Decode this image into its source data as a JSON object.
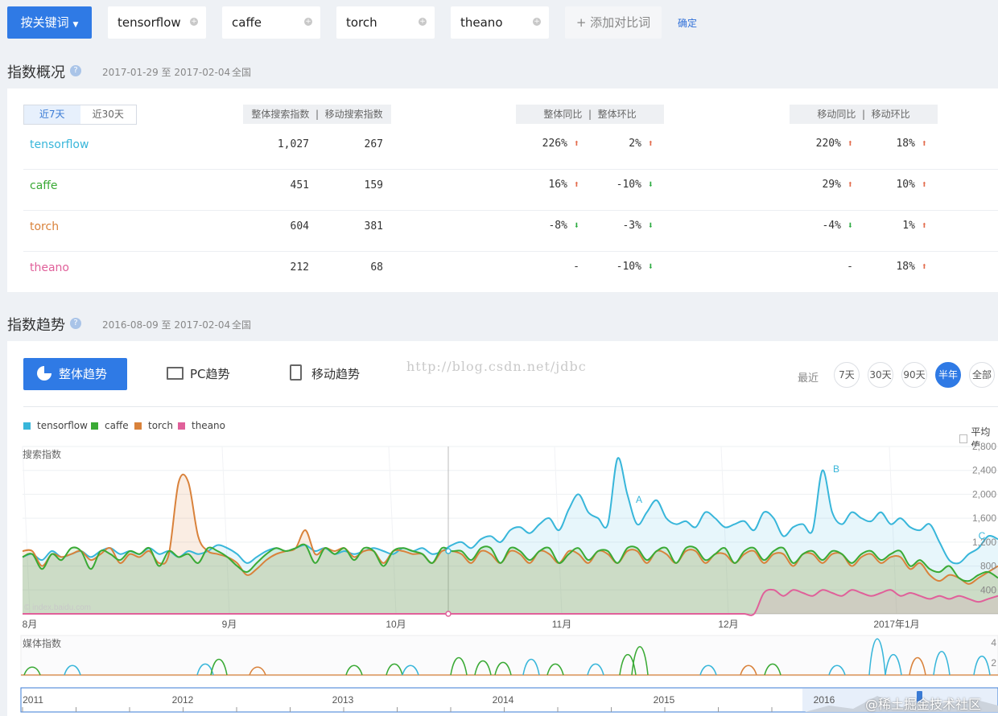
{
  "top": {
    "keyword_button": "按关键词",
    "keywords": [
      "tensorflow",
      "caffe",
      "torch",
      "theano"
    ],
    "add_label": "+ 添加对比词",
    "confirm": "确定"
  },
  "overview": {
    "title": "指数概况",
    "date_range": "2017-01-29 至 2017-02-04",
    "region": "全国",
    "tabs": [
      "近7天",
      "近30天"
    ],
    "head_search": "整体搜索指数",
    "head_mobile": "移动搜索指数",
    "head_yoy": "整体同比",
    "head_mom": "整体环比",
    "head_m_yoy": "移动同比",
    "head_m_mom": "移动环比",
    "rows": [
      {
        "name": "tensorflow",
        "color": "#38b6da",
        "total": "1,027",
        "mobile": "267",
        "yoy": "226%",
        "yoy_dir": "up",
        "mom": "2%",
        "mom_dir": "up",
        "m_yoy": "220%",
        "m_yoy_dir": "up",
        "m_mom": "18%",
        "m_mom_dir": "up"
      },
      {
        "name": "caffe",
        "color": "#3aaa35",
        "total": "451",
        "mobile": "159",
        "yoy": "16%",
        "yoy_dir": "up",
        "mom": "-10%",
        "mom_dir": "down",
        "m_yoy": "29%",
        "m_yoy_dir": "up",
        "m_mom": "10%",
        "m_mom_dir": "up"
      },
      {
        "name": "torch",
        "color": "#d9823b",
        "total": "604",
        "mobile": "381",
        "yoy": "-8%",
        "yoy_dir": "down",
        "mom": "-3%",
        "mom_dir": "down",
        "m_yoy": "-4%",
        "m_yoy_dir": "down",
        "m_mom": "1%",
        "m_mom_dir": "up"
      },
      {
        "name": "theano",
        "color": "#e0609a",
        "total": "212",
        "mobile": "68",
        "yoy": "-",
        "yoy_dir": "none",
        "mom": "-10%",
        "mom_dir": "down",
        "m_yoy": "-",
        "m_yoy_dir": "none",
        "m_mom": "18%",
        "m_mom_dir": "up"
      }
    ]
  },
  "trend": {
    "title": "指数趋势",
    "date_range": "2016-08-09 至 2017-02-04",
    "region": "全国",
    "tab_overall": "整体趋势",
    "tab_pc": "PC趋势",
    "tab_mobile": "移动趋势",
    "recent": "最近",
    "ranges": [
      "7天",
      "30天",
      "90天",
      "半年",
      "全部"
    ],
    "active_range": "半年",
    "watermark": "http://blog.csdn.net/jdbc",
    "avg_label": "平均值",
    "footer_watermark": "@稀土掘金技术社区"
  },
  "chart_data": {
    "type": "area",
    "ylabel": "搜索指数",
    "credit": "© index.baidu.com",
    "yticks": [
      400,
      800,
      1200,
      1600,
      2000,
      2400,
      2800
    ],
    "ylim": [
      0,
      2800
    ],
    "xticks": [
      "8月",
      "9月",
      "10月",
      "11月",
      "12月",
      "2017年1月"
    ],
    "annotations": [
      "A",
      "B",
      "C"
    ],
    "legend": "top-left",
    "media_label": "媒体指数",
    "media_ticks": [
      "4",
      "2"
    ],
    "overview_years": [
      "2011",
      "2012",
      "2013",
      "2014",
      "2015",
      "2016"
    ],
    "series": [
      {
        "name": "tensorflow",
        "color": "#38b6da",
        "values": [
          950,
          1000,
          900,
          1050,
          950,
          1000,
          1050,
          950,
          1050,
          1100,
          1000,
          1050,
          1000,
          1100,
          1000,
          1050,
          950,
          1050,
          1000,
          1050,
          1150,
          1100,
          1000,
          850,
          950,
          1050,
          1100,
          1050,
          1100,
          1150,
          1050,
          1100,
          1000,
          1050,
          1000,
          1050,
          1100,
          1050,
          1000,
          1100,
          1050,
          1100,
          1000,
          1050,
          1150,
          1200,
          1100,
          1250,
          1300,
          1200,
          1400,
          1450,
          1350,
          1500,
          1600,
          1400,
          1750,
          2000,
          1700,
          1600,
          1500,
          2600,
          2000,
          1500,
          1700,
          1900,
          1600,
          1500,
          1550,
          1450,
          1700,
          1600,
          1450,
          1500,
          1550,
          1400,
          1700,
          1600,
          1300,
          1450,
          1500,
          1400,
          2400,
          1700,
          1500,
          1700,
          1600,
          1550,
          1700,
          1500,
          1600,
          1450,
          1400,
          1500,
          1200,
          900,
          850,
          1000,
          1100,
          1300,
          1250
        ]
      },
      {
        "name": "caffe",
        "color": "#3aaa35",
        "values": [
          950,
          1000,
          750,
          1000,
          900,
          1100,
          1050,
          750,
          1050,
          1000,
          900,
          1050,
          1000,
          1100,
          800,
          1050,
          950,
          1000,
          850,
          1100,
          1050,
          950,
          800,
          700,
          850,
          1000,
          1100,
          1050,
          1100,
          1150,
          850,
          1100,
          1000,
          1100,
          900,
          1100,
          1050,
          800,
          1050,
          1100,
          1050,
          1000,
          850,
          1100,
          1050,
          1050,
          900,
          1100,
          1100,
          850,
          1100,
          1050,
          900,
          1050,
          1100,
          850,
          1000,
          1100,
          900,
          1050,
          1050,
          850,
          1100,
          1100,
          900,
          1050,
          1100,
          850,
          1100,
          1100,
          900,
          1000,
          1100,
          850,
          1050,
          1100,
          900,
          1050,
          1100,
          850,
          1000,
          1050,
          900,
          1050,
          1000,
          850,
          1000,
          1050,
          900,
          1000,
          1050,
          800,
          900,
          750,
          700,
          800,
          600,
          550,
          650,
          700,
          600
        ]
      },
      {
        "name": "torch",
        "color": "#d9823b",
        "values": [
          1050,
          1050,
          800,
          1000,
          950,
          1000,
          1050,
          900,
          1000,
          1100,
          850,
          1000,
          950,
          1050,
          850,
          1000,
          2200,
          2200,
          1300,
          1050,
          1000,
          950,
          850,
          650,
          750,
          900,
          1000,
          1050,
          1100,
          1400,
          1000,
          1100,
          1050,
          1100,
          950,
          1050,
          1050,
          850,
          1050,
          1050,
          1000,
          1000,
          850,
          1050,
          1050,
          1000,
          850,
          1050,
          1000,
          850,
          1050,
          1000,
          850,
          1050,
          1000,
          850,
          1050,
          1000,
          850,
          1050,
          1000,
          850,
          1050,
          1050,
          850,
          1050,
          1000,
          850,
          1050,
          1050,
          850,
          1000,
          1000,
          850,
          1000,
          1050,
          850,
          1000,
          1000,
          800,
          1000,
          1000,
          850,
          1000,
          1000,
          800,
          950,
          1000,
          850,
          950,
          950,
          750,
          850,
          650,
          550,
          650,
          600,
          500,
          600,
          700,
          800
        ]
      },
      {
        "name": "theano",
        "color": "#e0609a",
        "values": [
          0,
          0,
          0,
          0,
          0,
          0,
          0,
          0,
          0,
          0,
          0,
          0,
          0,
          0,
          0,
          0,
          0,
          0,
          0,
          0,
          0,
          0,
          0,
          0,
          0,
          0,
          0,
          0,
          0,
          0,
          0,
          0,
          0,
          0,
          0,
          0,
          0,
          0,
          0,
          0,
          0,
          0,
          0,
          0,
          0,
          0,
          0,
          0,
          0,
          0,
          0,
          0,
          0,
          0,
          0,
          0,
          0,
          0,
          0,
          0,
          0,
          0,
          0,
          0,
          0,
          0,
          0,
          0,
          0,
          0,
          0,
          0,
          0,
          0,
          0,
          0,
          350,
          400,
          300,
          400,
          350,
          300,
          400,
          350,
          300,
          400,
          350,
          300,
          350,
          400,
          300,
          350,
          300,
          250,
          300,
          250,
          300,
          250,
          200,
          250,
          300
        ]
      }
    ]
  }
}
